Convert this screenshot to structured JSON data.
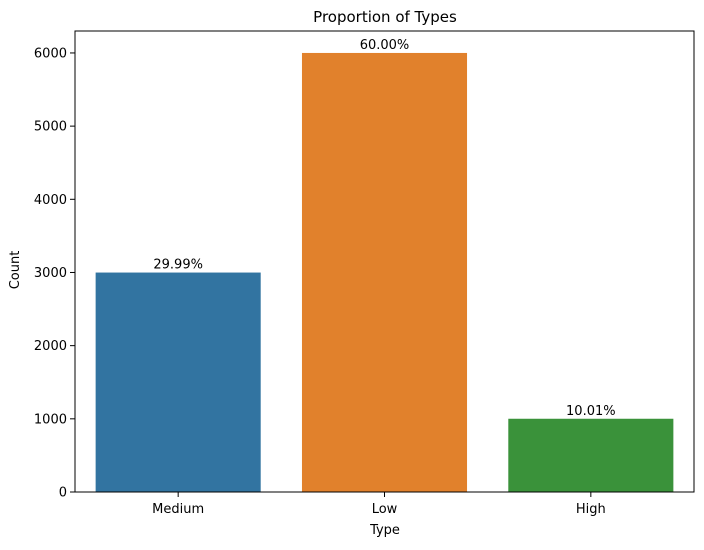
{
  "chart_data": {
    "type": "bar",
    "title": "Proportion of Types",
    "xlabel": "Type",
    "ylabel": "Count",
    "categories": [
      "Medium",
      "Low",
      "High"
    ],
    "values": [
      2999,
      6000,
      1001
    ],
    "data_labels": [
      "29.99%",
      "60.00%",
      "10.01%"
    ],
    "colors": [
      "#3274a1",
      "#e1812c",
      "#3a923a"
    ],
    "ylim": [
      0,
      6300
    ],
    "yticks": [
      0,
      1000,
      2000,
      3000,
      4000,
      5000,
      6000
    ],
    "ytick_labels": [
      "0",
      "1000",
      "2000",
      "3000",
      "4000",
      "5000",
      "6000"
    ],
    "grid": false,
    "legend": "none"
  }
}
